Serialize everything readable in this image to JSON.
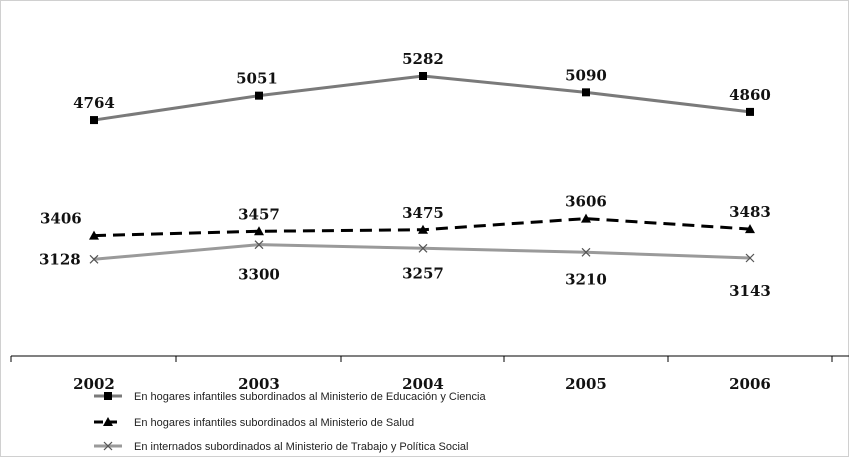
{
  "chart_data": {
    "type": "line",
    "categories": [
      "2002",
      "2003",
      "2004",
      "2005",
      "2006"
    ],
    "title": "",
    "xlabel": "",
    "ylabel": "",
    "ylim": [
      0,
      6000
    ],
    "grid": false,
    "legend_position": "bottom",
    "series": [
      {
        "name": "En hogares infantiles subordinados al Ministerio de Educación y Ciencia",
        "values": [
          4764,
          5051,
          5282,
          5090,
          4860
        ],
        "color": "#7a7a7a",
        "marker": "square",
        "line_style": "solid"
      },
      {
        "name": "En hogares infantiles subordinados al Ministerio de Salud",
        "values": [
          3406,
          3457,
          3475,
          3606,
          3483
        ],
        "color": "#000000",
        "marker": "triangle",
        "line_style": "dashed"
      },
      {
        "name": "En internados subordinados al Ministerio de Trabajo y Política Social",
        "values": [
          3128,
          3300,
          3257,
          3210,
          3143
        ],
        "color": "#9a9a9a",
        "marker": "x",
        "line_style": "solid"
      }
    ]
  }
}
